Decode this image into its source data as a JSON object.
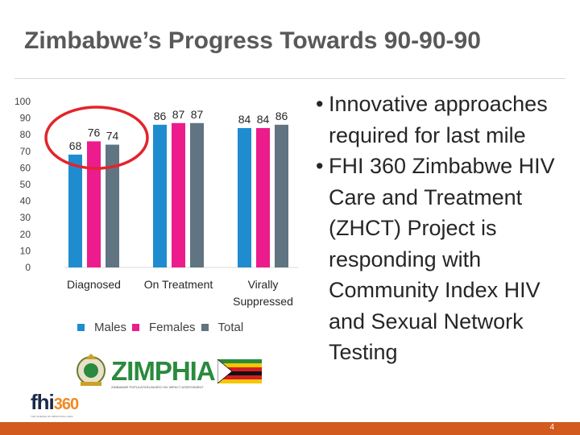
{
  "slide": {
    "title": "Zimbabwe’s Progress Towards 90-90-90",
    "page_number": "4"
  },
  "chart_data": {
    "type": "bar",
    "categories": [
      "Diagnosed",
      "On Treatment",
      "Virally Suppressed"
    ],
    "category_lines": [
      [
        "Diagnosed"
      ],
      [
        "On Treatment"
      ],
      [
        "Virally",
        "Suppressed"
      ]
    ],
    "series": [
      {
        "name": "Males",
        "values": [
          68,
          86,
          84
        ],
        "color": "#1f8ccf"
      },
      {
        "name": "Females",
        "values": [
          76,
          87,
          84
        ],
        "color": "#ec1c8c"
      },
      {
        "name": "Total",
        "values": [
          74,
          87,
          86
        ],
        "color": "#607482"
      }
    ],
    "y_ticks": [
      "100",
      "90",
      "80",
      "70",
      "60",
      "50",
      "40",
      "30",
      "20",
      "10",
      "0"
    ],
    "ylim": [
      0,
      100
    ],
    "grid": false,
    "legend_position": "bottom",
    "annotation": "red ellipse highlighting the Diagnosed group",
    "annotation_color": "#e3242b"
  },
  "bullets": [
    "Innovative approaches required for last mile",
    "FHI 360 Zimbabwe HIV Care and Treatment (ZHCT) Project is responding with Community Index HIV  and Sexual Network Testing"
  ],
  "bullet_marker": "•",
  "logos": {
    "zimphia": "ZIMPHIA",
    "zimphia_sub": "ZIMBABWE POPULATION-BASED HIV IMPACT ASSESSMENT",
    "fhi": "fhi",
    "fhi_num": "360",
    "fhi_tag": "THE SCIENCE OF IMPROVING LIVES"
  },
  "colors": {
    "footer": "#d25a1e",
    "title": "#595959",
    "zim_green": "#2a8a3e"
  }
}
